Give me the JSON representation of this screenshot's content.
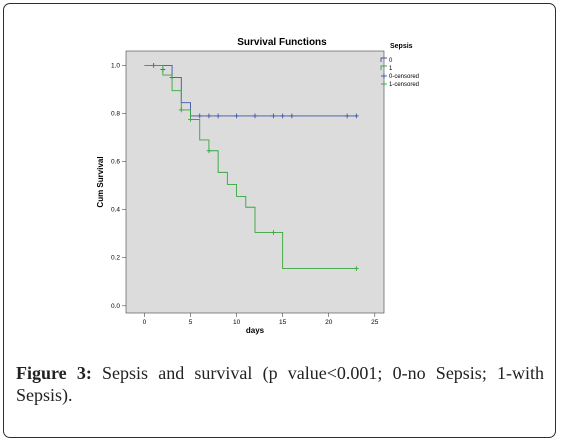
{
  "chart_data": {
    "type": "line",
    "subtype": "kaplan-meier step",
    "title": "Survival Functions",
    "xlabel": "days",
    "ylabel": "Cum Survival",
    "xlim": [
      -2,
      26
    ],
    "ylim": [
      -0.03,
      1.06
    ],
    "x_ticks": [
      0,
      5,
      10,
      15,
      20,
      25
    ],
    "y_ticks": [
      0.0,
      0.2,
      0.4,
      0.6,
      0.8,
      1.0
    ],
    "x_tick_labels": [
      "0",
      "5",
      "10",
      "15",
      "20",
      "25"
    ],
    "y_tick_labels": [
      "0.0",
      "0.2",
      "0.4",
      "0.6",
      "0.8",
      "1.0"
    ],
    "grid": false,
    "plot_background": "#dcdcdc",
    "legend_title": "Sepsis",
    "legend_position": "right",
    "series": [
      {
        "name": "0",
        "color": "#3d55a8",
        "steps": [
          [
            0,
            1.0
          ],
          [
            3,
            0.95
          ],
          [
            4,
            0.845
          ],
          [
            5,
            0.79
          ],
          [
            23,
            0.79
          ]
        ],
        "censored_name": "0-censored",
        "censored": [
          [
            1,
            1.0
          ],
          [
            2,
            0.983
          ],
          [
            3,
            0.95
          ],
          [
            6,
            0.79
          ],
          [
            7,
            0.79
          ],
          [
            8,
            0.79
          ],
          [
            10,
            0.79
          ],
          [
            12,
            0.79
          ],
          [
            14,
            0.79
          ],
          [
            15,
            0.79
          ],
          [
            16,
            0.79
          ],
          [
            22,
            0.79
          ],
          [
            23,
            0.79
          ]
        ]
      },
      {
        "name": "1",
        "color": "#35a83d",
        "steps": [
          [
            0,
            1.0
          ],
          [
            2,
            0.96
          ],
          [
            3,
            0.895
          ],
          [
            4,
            0.815
          ],
          [
            5,
            0.775
          ],
          [
            6,
            0.69
          ],
          [
            7,
            0.645
          ],
          [
            8,
            0.555
          ],
          [
            9,
            0.505
          ],
          [
            10,
            0.455
          ],
          [
            11,
            0.41
          ],
          [
            12,
            0.305
          ],
          [
            15,
            0.155
          ],
          [
            23,
            0.155
          ]
        ],
        "censored_name": "1-censored",
        "censored": [
          [
            4,
            0.815
          ],
          [
            5,
            0.775
          ],
          [
            7,
            0.645
          ],
          [
            14,
            0.305
          ],
          [
            23,
            0.155
          ]
        ]
      }
    ]
  },
  "caption": {
    "label": "Figure 3:",
    "text": " Sepsis and survival (p value<0.001; 0-no Sepsis; 1-with Sepsis)."
  }
}
